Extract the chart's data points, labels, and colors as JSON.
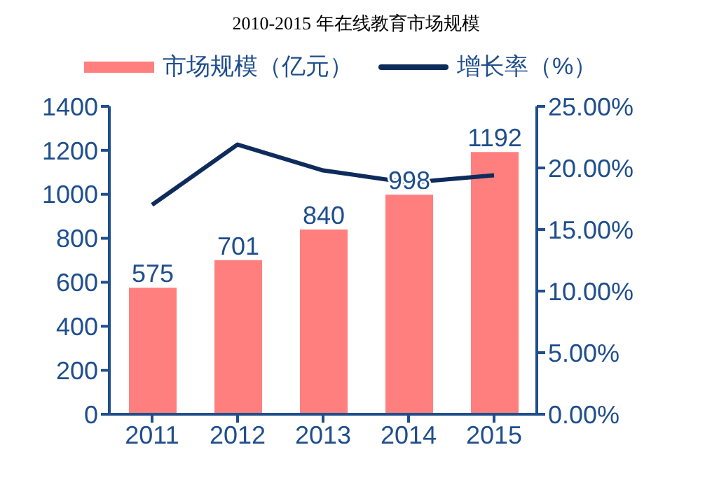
{
  "chart_data": {
    "type": "bar",
    "title": "2010-2015 年在线教育市场规模",
    "categories": [
      "2011",
      "2012",
      "2013",
      "2014",
      "2015"
    ],
    "series": [
      {
        "name": "市场规模（亿元）",
        "color": "#ff7f7f",
        "values": [
          575,
          701,
          840,
          998,
          1192
        ],
        "data_labels": true
      },
      {
        "name": "增长率（%）",
        "type": "line",
        "axis": "y2",
        "color": "#0d2c5c",
        "values": [
          17.0,
          21.9,
          19.8,
          18.8,
          19.4
        ]
      }
    ],
    "ylim": [
      0,
      1400
    ],
    "yticks": [
      0,
      200,
      400,
      600,
      800,
      1000,
      1200,
      1400
    ],
    "y2lim": [
      0,
      25
    ],
    "y2ticks": [
      {
        "value": 0,
        "label": "0.00%"
      },
      {
        "value": 5,
        "label": "5.00%"
      },
      {
        "value": 10,
        "label": "10.00%"
      },
      {
        "value": 15,
        "label": "15.00%"
      },
      {
        "value": 20,
        "label": "20.00%"
      },
      {
        "value": 25,
        "label": "25.00%"
      }
    ],
    "legend": "top",
    "marker": "none",
    "line_style": "solid"
  }
}
